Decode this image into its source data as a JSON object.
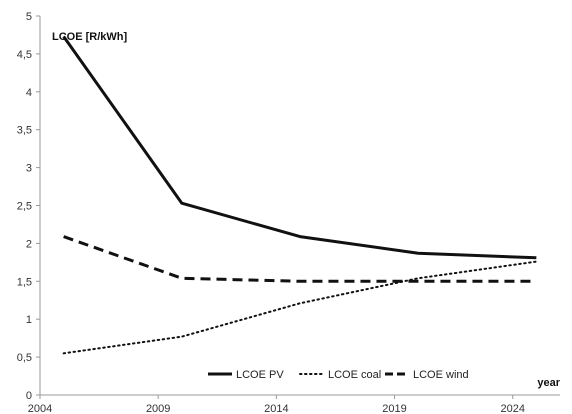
{
  "chart_data": {
    "type": "line",
    "title": "",
    "ylabel": "LCOE [R/kWh]",
    "xlabel": "year",
    "xlim": [
      2004,
      2026
    ],
    "ylim": [
      0,
      5
    ],
    "x_ticks": [
      "2004",
      "2009",
      "2014",
      "2019",
      "2024"
    ],
    "y_ticks": [
      "0",
      "0,5",
      "1",
      "1,5",
      "2",
      "2,5",
      "3",
      "3,5",
      "4",
      "4,5",
      "5"
    ],
    "grid": false,
    "legend_position": "bottom-right",
    "x": [
      2005,
      2010,
      2015,
      2020,
      2025
    ],
    "series": [
      {
        "name": "LCOE PV",
        "style": "solid",
        "values": [
          4.73,
          2.53,
          2.09,
          1.87,
          1.81
        ]
      },
      {
        "name": "LCOE coal",
        "style": "dotted",
        "values": [
          0.55,
          0.77,
          1.21,
          1.54,
          1.76
        ]
      },
      {
        "name": "LCOE wind",
        "style": "dashed",
        "values": [
          2.09,
          1.54,
          1.5,
          1.5,
          1.5
        ]
      }
    ],
    "colors": {
      "line": "#111111",
      "axis": "#999999"
    }
  }
}
